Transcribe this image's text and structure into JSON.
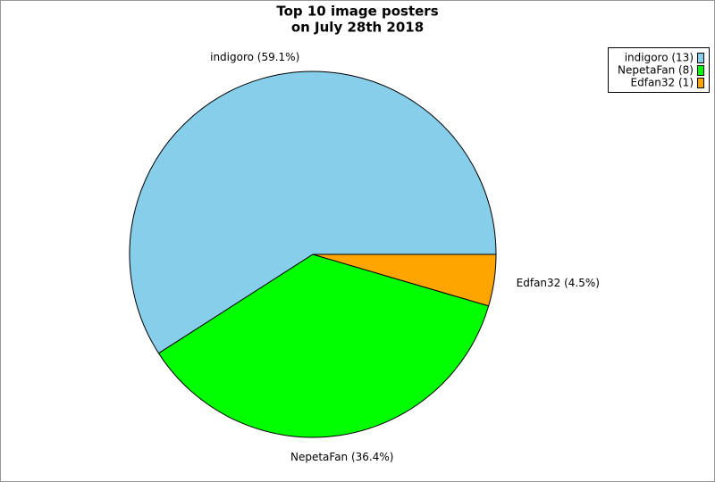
{
  "chart_data": {
    "type": "pie",
    "title": [
      "Top 10 image posters",
      "on July 28th 2018"
    ],
    "values": [
      13,
      8,
      1
    ],
    "slice_labels": [
      "indigoro (59.1%)",
      "NepetaFan (36.4%)",
      "Edfan32 (4.5%)"
    ],
    "legend_labels": [
      "indigoro (13)",
      "NepetaFan (8)",
      "Edfan32 (1)"
    ],
    "colors": [
      "#87ceeb",
      "#00ff00",
      "#ffa500"
    ],
    "legend": "top-right"
  }
}
